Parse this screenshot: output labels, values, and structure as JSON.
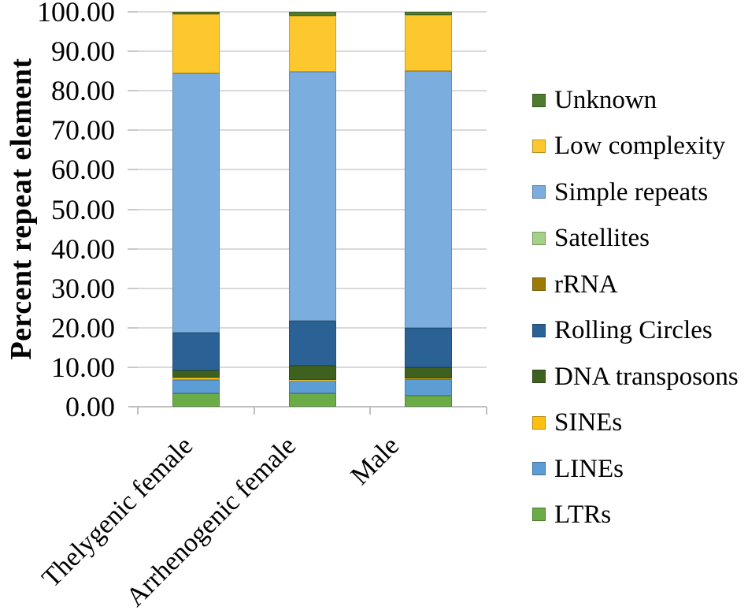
{
  "figure": {
    "y_axis_title": "Percent repeat element"
  },
  "chart_data": {
    "type": "bar",
    "stacked": true,
    "title": "",
    "xlabel": "",
    "ylabel": "Percent repeat element",
    "ylim": [
      0,
      100
    ],
    "grid": true,
    "legend_position": "right",
    "y_tick_labels": [
      "0.00",
      "10.00",
      "20.00",
      "30.00",
      "40.00",
      "50.00",
      "60.00",
      "70.00",
      "80.00",
      "90.00",
      "100.00"
    ],
    "categories": [
      "Thelygenic female",
      "Arrhenogenic female",
      "Male"
    ],
    "series": [
      {
        "name": "LTRs",
        "color": "#6bac46",
        "values": [
          3.3,
          3.3,
          2.8
        ]
      },
      {
        "name": "LINEs",
        "color": "#5d9dd5",
        "values": [
          3.4,
          3.4,
          4.2
        ]
      },
      {
        "name": "SINEs",
        "color": "#fdc010",
        "values": [
          0.6,
          0.1,
          0.1
        ]
      },
      {
        "name": "DNA transposons",
        "color": "#3e611f",
        "values": [
          1.8,
          3.6,
          2.8
        ]
      },
      {
        "name": "Rolling Circles",
        "color": "#2b6296",
        "values": [
          9.6,
          11.3,
          10.0
        ]
      },
      {
        "name": "rRNA",
        "color": "#9c7a06",
        "values": [
          0.0,
          0.0,
          0.0
        ]
      },
      {
        "name": "Satellites",
        "color": "#a5d087",
        "values": [
          0.0,
          0.0,
          0.0
        ]
      },
      {
        "name": "Simple repeats",
        "color": "#7badde",
        "values": [
          65.8,
          63.2,
          65.1
        ]
      },
      {
        "name": "Low complexity",
        "color": "#fdc82d",
        "values": [
          15.0,
          14.2,
          14.2
        ]
      },
      {
        "name": "Unknown",
        "color": "#4e7b2d",
        "values": [
          0.5,
          0.9,
          0.8
        ]
      }
    ],
    "legend_order_top_to_bottom": [
      "Unknown",
      "Low complexity",
      "Simple repeats",
      "Satellites",
      "rRNA",
      "Rolling Circles",
      "DNA transposons",
      "SINEs",
      "LINEs",
      "LTRs"
    ]
  }
}
